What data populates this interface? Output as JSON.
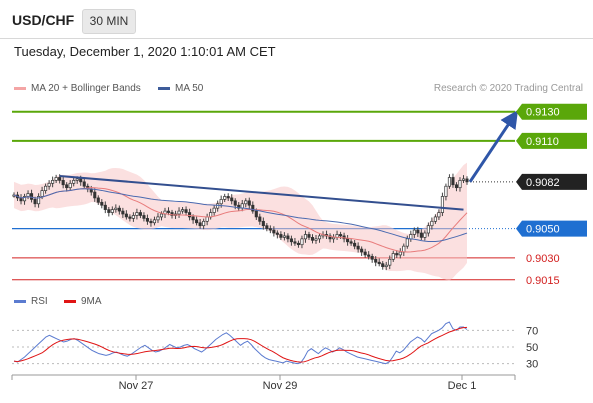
{
  "header": {
    "pair": "USD/CHF",
    "timeframe": "30 MIN"
  },
  "timestamp": "Tuesday, December 1, 2020 1:10:01 AM CET",
  "legend": {
    "ma20": "MA 20 + Bollinger Bands",
    "ma50": "MA 50"
  },
  "credit": "Research © 2020 Trading Central",
  "rsi_legend": {
    "rsi": "RSI",
    "ma9": "9MA"
  },
  "colors": {
    "target": "#5aa70a",
    "current": "#222222",
    "pivot": "#1f6fd1",
    "support": "#d32020",
    "trend": "#334f8f",
    "band": "#f7c7c7",
    "ma20": "#e87b7b",
    "ma50": "#4a6ab0",
    "rsi": "#5b7bd0",
    "rsi_ma": "#e01515"
  },
  "chart_data": {
    "type": "candlestick",
    "xlabels": [
      "Nov 27",
      "Nov 29",
      "Dec 1"
    ],
    "ylim": [
      0.9008,
      0.9138
    ],
    "levels": [
      {
        "label": "0.9130",
        "value": 0.913,
        "kind": "target"
      },
      {
        "label": "0.9110",
        "value": 0.911,
        "kind": "target"
      },
      {
        "label": "0.9082",
        "value": 0.9082,
        "kind": "current"
      },
      {
        "label": "0.9050",
        "value": 0.905,
        "kind": "pivot"
      },
      {
        "label": "0.9030",
        "value": 0.903,
        "kind": "support"
      },
      {
        "label": "0.9015",
        "value": 0.9015,
        "kind": "support"
      }
    ],
    "closes": [
      0.9073,
      0.9071,
      0.9069,
      0.9072,
      0.9074,
      0.907,
      0.9067,
      0.9072,
      0.9076,
      0.9079,
      0.9081,
      0.9083,
      0.9085,
      0.9083,
      0.908,
      0.9078,
      0.9081,
      0.9083,
      0.9084,
      0.9082,
      0.9079,
      0.9077,
      0.9075,
      0.9071,
      0.9068,
      0.9066,
      0.9063,
      0.9061,
      0.9063,
      0.9064,
      0.9062,
      0.906,
      0.9058,
      0.9057,
      0.9059,
      0.9061,
      0.9059,
      0.9057,
      0.9055,
      0.9054,
      0.9056,
      0.9058,
      0.906,
      0.9062,
      0.9061,
      0.9059,
      0.906,
      0.9062,
      0.9063,
      0.9061,
      0.9058,
      0.9056,
      0.9054,
      0.9052,
      0.9055,
      0.9058,
      0.9061,
      0.9064,
      0.9067,
      0.907,
      0.9072,
      0.9071,
      0.9069,
      0.9066,
      0.9064,
      0.9067,
      0.9069,
      0.9066,
      0.9062,
      0.9058,
      0.9055,
      0.9052,
      0.905,
      0.9049,
      0.9047,
      0.9046,
      0.9044,
      0.9045,
      0.9043,
      0.9041,
      0.904,
      0.9039,
      0.9043,
      0.9046,
      0.9044,
      0.9042,
      0.9043,
      0.9045,
      0.9046,
      0.9045,
      0.9043,
      0.9044,
      0.9046,
      0.9045,
      0.9043,
      0.9041,
      0.904,
      0.9038,
      0.9036,
      0.9034,
      0.9032,
      0.9031,
      0.9029,
      0.9027,
      0.9026,
      0.9024,
      0.9025,
      0.9029,
      0.9033,
      0.9032,
      0.9034,
      0.9038,
      0.9043,
      0.9046,
      0.9049,
      0.9047,
      0.9044,
      0.9047,
      0.9052,
      0.9055,
      0.9058,
      0.9061,
      0.9072,
      0.9079,
      0.9085,
      0.908,
      0.9078,
      0.9083,
      0.9084,
      0.9082
    ],
    "rsi": {
      "ticks": [
        30,
        50,
        70
      ],
      "ylim": [
        20,
        80
      ],
      "values": [
        33,
        32,
        35,
        38,
        42,
        46,
        50,
        54,
        58,
        62,
        64,
        62,
        60,
        58,
        56,
        57,
        59,
        60,
        58,
        55,
        52,
        49,
        46,
        44,
        42,
        41,
        40,
        41,
        43,
        44,
        42,
        40,
        39,
        41,
        44,
        47,
        50,
        52,
        49,
        46,
        44,
        45,
        47,
        50,
        53,
        51,
        49,
        50,
        52,
        53,
        51,
        48,
        46,
        44,
        47,
        51,
        55,
        59,
        62,
        65,
        67,
        64,
        60,
        56,
        52,
        55,
        57,
        53,
        48,
        44,
        40,
        37,
        35,
        34,
        33,
        32,
        31,
        33,
        32,
        31,
        30,
        31,
        37,
        45,
        48,
        45,
        42,
        46,
        49,
        47,
        44,
        46,
        49,
        47,
        44,
        42,
        40,
        38,
        37,
        36,
        35,
        34,
        33,
        32,
        31,
        30,
        32,
        38,
        45,
        43,
        46,
        51,
        56,
        59,
        62,
        60,
        56,
        61,
        66,
        68,
        70,
        73,
        78,
        80,
        72,
        70,
        74,
        74,
        71
      ]
    }
  }
}
